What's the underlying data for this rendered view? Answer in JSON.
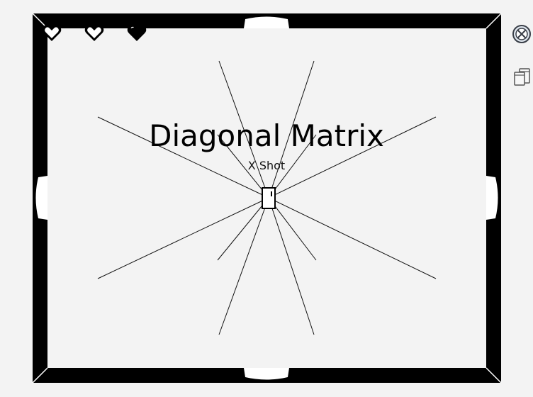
{
  "game": {
    "title": "Diagonal Matrix",
    "subtitle": "X Shot"
  },
  "hud": {
    "hearts": [
      {
        "state": "empty"
      },
      {
        "state": "empty"
      },
      {
        "state": "full"
      }
    ]
  },
  "colors": {
    "background": "#f3f3f3",
    "wall": "#000000",
    "floor": "#f3f3f3",
    "door": "#ffffff"
  },
  "controls": {
    "close_icon": "circled-x-icon",
    "window_icon": "restore-window-icon"
  }
}
